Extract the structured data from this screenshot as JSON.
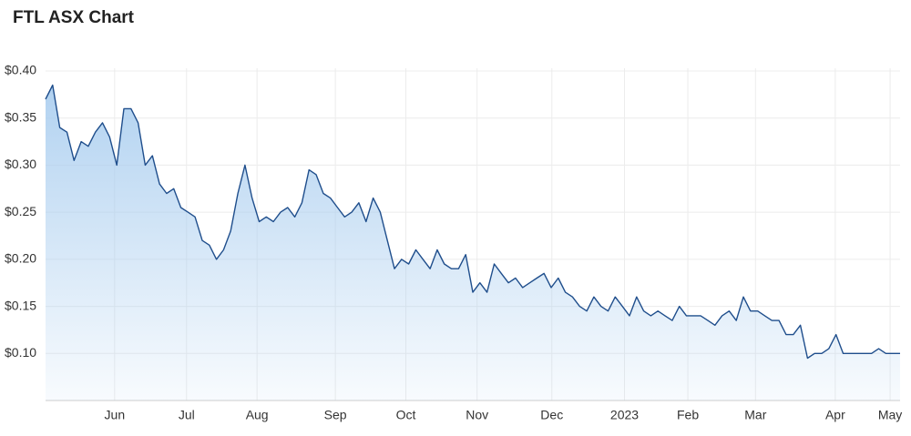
{
  "chart_data": {
    "type": "line",
    "title": "FTL ASX Chart",
    "values": [
      0.37,
      0.385,
      0.34,
      0.335,
      0.305,
      0.325,
      0.32,
      0.335,
      0.345,
      0.33,
      0.3,
      0.36,
      0.36,
      0.345,
      0.3,
      0.31,
      0.28,
      0.27,
      0.275,
      0.255,
      0.25,
      0.245,
      0.22,
      0.215,
      0.2,
      0.21,
      0.23,
      0.27,
      0.3,
      0.265,
      0.24,
      0.245,
      0.24,
      0.25,
      0.255,
      0.245,
      0.26,
      0.295,
      0.29,
      0.27,
      0.265,
      0.255,
      0.245,
      0.25,
      0.26,
      0.24,
      0.265,
      0.25,
      0.22,
      0.19,
      0.2,
      0.195,
      0.21,
      0.2,
      0.19,
      0.21,
      0.195,
      0.19,
      0.19,
      0.205,
      0.165,
      0.175,
      0.165,
      0.195,
      0.185,
      0.175,
      0.18,
      0.17,
      0.175,
      0.18,
      0.185,
      0.17,
      0.18,
      0.165,
      0.16,
      0.15,
      0.145,
      0.16,
      0.15,
      0.145,
      0.16,
      0.15,
      0.14,
      0.16,
      0.145,
      0.14,
      0.145,
      0.14,
      0.135,
      0.15,
      0.14,
      0.14,
      0.14,
      0.135,
      0.13,
      0.14,
      0.145,
      0.135,
      0.16,
      0.145,
      0.145,
      0.14,
      0.135,
      0.135,
      0.12,
      0.12,
      0.13,
      0.095,
      0.1,
      0.1,
      0.105,
      0.12,
      0.1,
      0.1,
      0.1,
      0.1,
      0.1,
      0.105,
      0.1,
      0.1,
      0.1
    ],
    "color": "#1f4e8c",
    "xlim": [
      0,
      120
    ],
    "xticks": [
      {
        "value": 9.7,
        "label": "Jun"
      },
      {
        "value": 19.8,
        "label": "Jul"
      },
      {
        "value": 29.7,
        "label": "Aug"
      },
      {
        "value": 40.7,
        "label": "Sep"
      },
      {
        "value": 50.6,
        "label": "Oct"
      },
      {
        "value": 60.6,
        "label": "Nov"
      },
      {
        "value": 71.1,
        "label": "Dec"
      },
      {
        "value": 81.3,
        "label": "2023"
      },
      {
        "value": 90.2,
        "label": "Feb"
      },
      {
        "value": 99.7,
        "label": "Mar"
      },
      {
        "value": 110.9,
        "label": "Apr"
      },
      {
        "value": 118.6,
        "label": "May"
      }
    ],
    "ylim": [
      0.05,
      0.4
    ],
    "yticks": [
      {
        "value": 0.1,
        "label": "$0.10"
      },
      {
        "value": 0.15,
        "label": "$0.15"
      },
      {
        "value": 0.2,
        "label": "$0.20"
      },
      {
        "value": 0.25,
        "label": "$0.25"
      },
      {
        "value": 0.3,
        "label": "$0.30"
      },
      {
        "value": 0.35,
        "label": "$0.35"
      },
      {
        "value": 0.4,
        "label": "$0.40"
      }
    ],
    "grid": true
  }
}
